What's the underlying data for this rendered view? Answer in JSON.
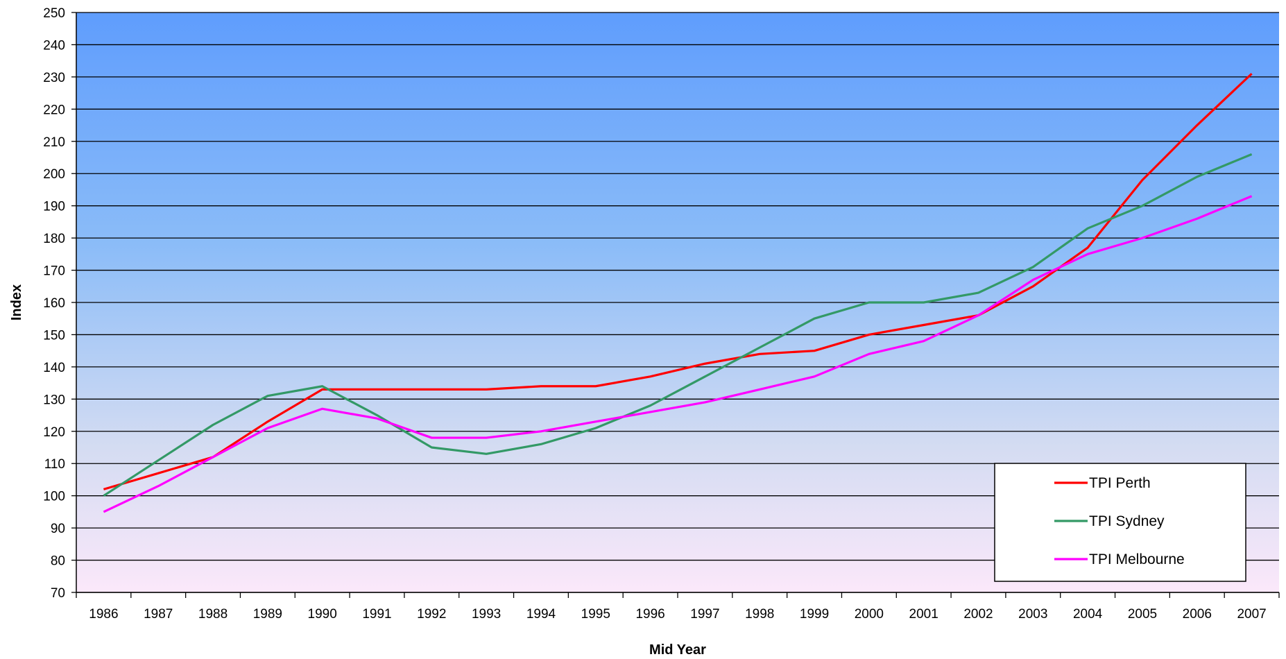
{
  "chart_data": {
    "type": "line",
    "title": "",
    "xlabel": "Mid Year",
    "ylabel": "Index",
    "ylim": [
      70,
      250
    ],
    "yticks": [
      70,
      80,
      90,
      100,
      110,
      120,
      130,
      140,
      150,
      160,
      170,
      180,
      190,
      200,
      210,
      220,
      230,
      240,
      250
    ],
    "categories": [
      "1986",
      "1987",
      "1988",
      "1989",
      "1990",
      "1991",
      "1992",
      "1993",
      "1994",
      "1995",
      "1996",
      "1997",
      "1998",
      "1999",
      "2000",
      "2001",
      "2002",
      "2003",
      "2004",
      "2005",
      "2006",
      "2007"
    ],
    "grid": true,
    "legend_position": "bottom-right",
    "series": [
      {
        "name": "TPI Perth",
        "color": "#ff0000",
        "values": [
          102,
          107,
          112,
          123,
          133,
          133,
          133,
          133,
          134,
          134,
          137,
          141,
          144,
          145,
          150,
          153,
          156,
          165,
          177,
          198,
          215,
          231
        ]
      },
      {
        "name": "TPI Sydney",
        "color": "#339966",
        "values": [
          100,
          111,
          122,
          131,
          134,
          125,
          115,
          113,
          116,
          121,
          128,
          137,
          146,
          155,
          160,
          160,
          163,
          171,
          183,
          190,
          199,
          206
        ]
      },
      {
        "name": "TPI Melbourne",
        "color": "#ff00ff",
        "values": [
          95,
          103,
          112,
          121,
          127,
          124,
          118,
          118,
          120,
          123,
          126,
          129,
          133,
          137,
          144,
          148,
          156,
          167,
          175,
          180,
          186,
          193
        ]
      }
    ]
  }
}
